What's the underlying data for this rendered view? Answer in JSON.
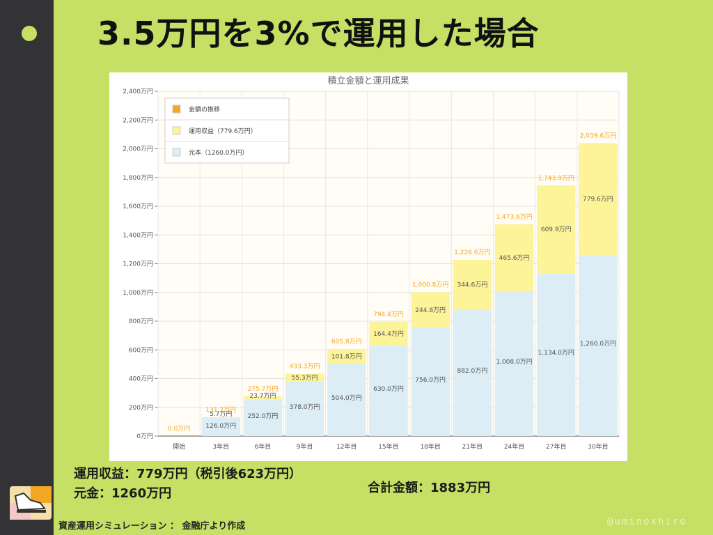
{
  "slide": {
    "title": "3.5万円を3%で運用した場合",
    "summary_profit": "運用収益：779万円（税引後623万円）",
    "summary_principal": "元金：1260万円",
    "summary_total": "合計金額：1883万円",
    "footer_source": "資産運用シミュレーション ： 金融庁より作成",
    "footer_handle": "@uminoxhiro",
    "colors": {
      "background": "#c6e065",
      "sidebar": "#333336",
      "principal_bar": "#dcedf5",
      "profit_bar": "#fdf398",
      "total_label": "#f5a623"
    }
  },
  "chart_data": {
    "type": "bar",
    "stacked": true,
    "title": "積立金額と運用成果",
    "ylim": [
      0,
      2400
    ],
    "yticks": [
      0,
      200,
      400,
      600,
      800,
      1000,
      1200,
      1400,
      1600,
      1800,
      2000,
      2200,
      2400
    ],
    "ytick_labels": [
      "0万円",
      "200万円",
      "400万円",
      "600万円",
      "800万円",
      "1,000万円",
      "1,200万円",
      "1,400万円",
      "1,600万円",
      "1,800万円",
      "2,000万円",
      "2,200万円",
      "2,400万円"
    ],
    "categories": [
      "開始",
      "3年目",
      "6年目",
      "9年目",
      "12年目",
      "15年目",
      "18年目",
      "21年目",
      "24年目",
      "27年目",
      "30年目"
    ],
    "series": [
      {
        "name": "元本（1260.0万円）",
        "color": "#dcedf5",
        "values": [
          0,
          126.0,
          252.0,
          378.0,
          504.0,
          630.0,
          756.0,
          882.0,
          1008.0,
          1134.0,
          1260.0
        ],
        "labels": [
          "",
          "126.0万円",
          "252.0万円",
          "378.0万円",
          "504.0万円",
          "630.0万円",
          "756.0万円",
          "882.0万円",
          "1,008.0万円",
          "1,134.0万円",
          "1,260.0万円"
        ]
      },
      {
        "name": "運用収益（779.6万円）",
        "color": "#fdf398",
        "values": [
          0,
          5.7,
          23.7,
          55.3,
          101.8,
          164.4,
          244.8,
          344.6,
          465.6,
          609.9,
          779.6
        ],
        "labels": [
          "",
          "5.7万円",
          "23.7万円",
          "55.3万円",
          "101.8万円",
          "164.4万円",
          "244.8万円",
          "344.6万円",
          "465.6万円",
          "609.9万円",
          "779.6万円"
        ]
      }
    ],
    "totals": [
      0.0,
      131.7,
      275.7,
      433.3,
      605.8,
      794.4,
      1000.8,
      1226.6,
      1473.6,
      1743.9,
      2039.6
    ],
    "total_labels": [
      "0.0万円",
      "131.7万円",
      "275.7万円",
      "433.3万円",
      "605.8万円",
      "794.4万円",
      "1,000.8万円",
      "1,226.6万円",
      "1,473.6万円",
      "1,743.9万円",
      "2,039.6万円"
    ],
    "legend": [
      {
        "name": "金額の推移",
        "color": "#f5a623"
      },
      {
        "name": "運用収益（779.6万円）",
        "color": "#fdf398"
      },
      {
        "name": "元本（1260.0万円）",
        "color": "#dcedf5"
      }
    ],
    "legend_position": "top-left",
    "grid": true
  }
}
